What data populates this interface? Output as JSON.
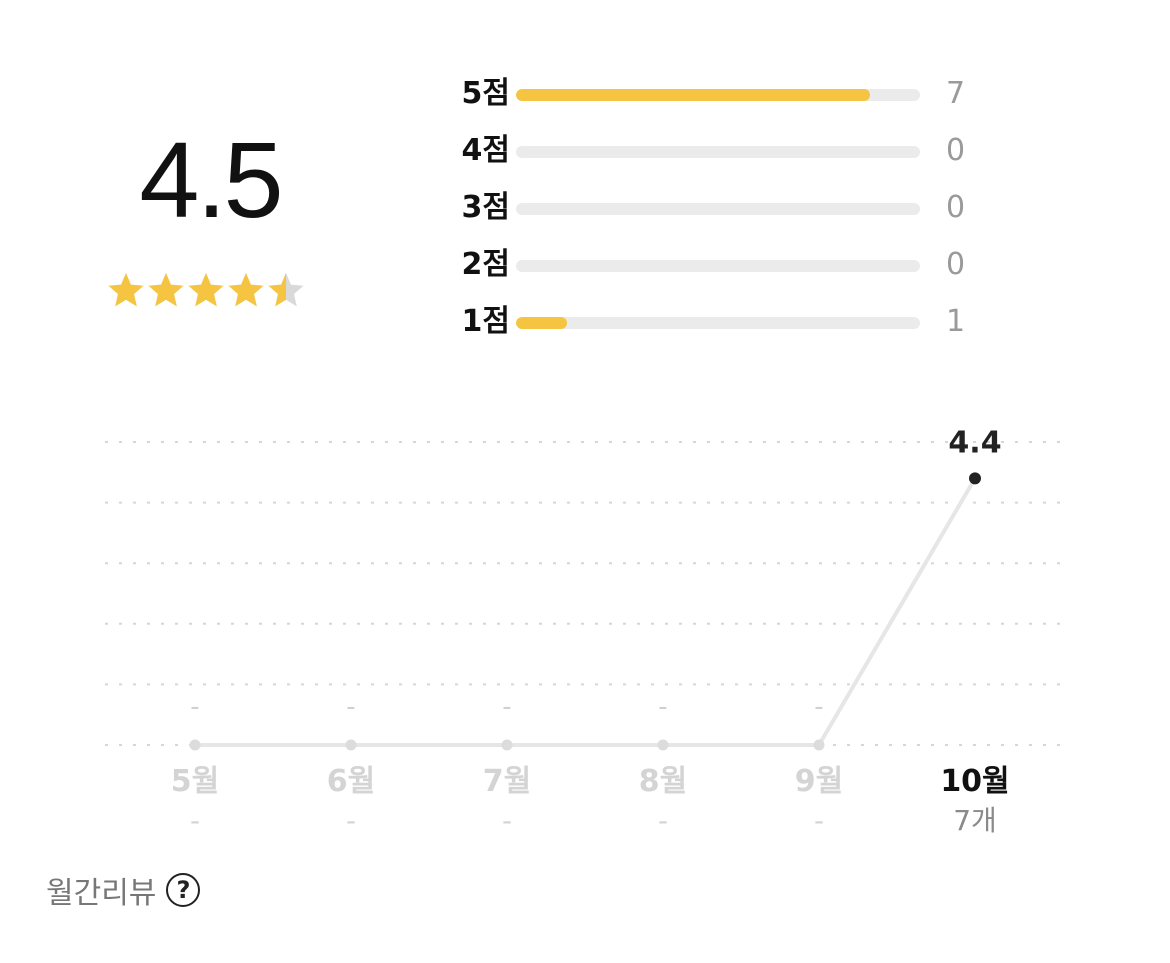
{
  "summary": {
    "average": "4.5",
    "stars_value": 4.5,
    "star_color": "#f5c542",
    "star_empty_color": "#d9d9d9"
  },
  "distribution": [
    {
      "label": "5점",
      "count": "7",
      "fraction": 0.875
    },
    {
      "label": "4점",
      "count": "0",
      "fraction": 0
    },
    {
      "label": "3점",
      "count": "0",
      "fraction": 0
    },
    {
      "label": "2점",
      "count": "0",
      "fraction": 0
    },
    {
      "label": "1점",
      "count": "1",
      "fraction": 0.125
    }
  ],
  "chart_data": {
    "type": "line",
    "categories": [
      "5월",
      "6월",
      "7월",
      "8월",
      "9월",
      "10월"
    ],
    "values": [
      0,
      0,
      0,
      0,
      0,
      4.4
    ],
    "point_labels": [
      "-",
      "-",
      "-",
      "-",
      "-",
      "4.4"
    ],
    "counts": [
      "-",
      "-",
      "-",
      "-",
      "-",
      "7개"
    ],
    "active_index": 5,
    "ylim": [
      0,
      5
    ],
    "grid": true
  },
  "footer": {
    "label": "월간리뷰",
    "help_icon": "?"
  }
}
